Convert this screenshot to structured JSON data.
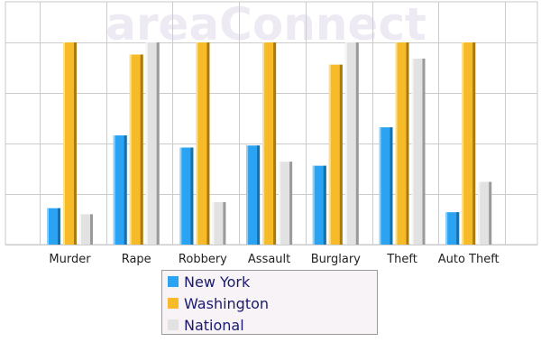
{
  "watermark": "areaConnect",
  "chart_data": {
    "type": "bar",
    "categories": [
      "Murder",
      "Rape",
      "Robbery",
      "Assault",
      "Burglary",
      "Theft",
      "Auto Theft"
    ],
    "series": [
      {
        "name": "New York",
        "color": "#2aa3f2",
        "values": [
          18,
          54,
          48,
          49,
          39,
          58,
          16
        ]
      },
      {
        "name": "Washington",
        "color": "#f7bb2a",
        "values": [
          100,
          94,
          100,
          100,
          89,
          100,
          100
        ]
      },
      {
        "name": "National",
        "color": "#e2e2e2",
        "values": [
          15,
          100,
          21,
          41,
          100,
          92,
          31
        ]
      }
    ],
    "ylim": [
      0,
      100
    ],
    "grid": true,
    "legend_position": "bottom-center"
  }
}
